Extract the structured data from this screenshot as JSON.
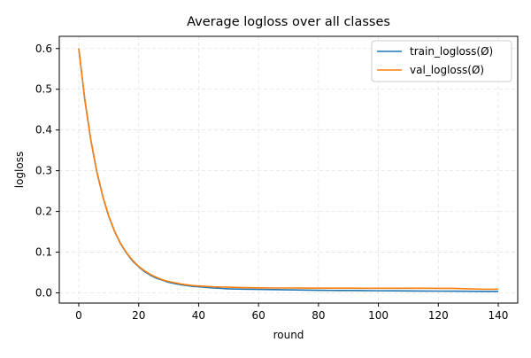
{
  "chart_data": {
    "type": "line",
    "title": "Average logloss over all classes",
    "xlabel": "round",
    "ylabel": "logloss",
    "xlim": [
      -6.5,
      146.5
    ],
    "ylim": [
      -0.025,
      0.63
    ],
    "xticks": [
      0,
      20,
      40,
      60,
      80,
      100,
      120,
      140
    ],
    "yticks": [
      0.0,
      0.1,
      0.2,
      0.3,
      0.4,
      0.5,
      0.6
    ],
    "xtick_labels": [
      "0",
      "20",
      "40",
      "60",
      "80",
      "100",
      "120",
      "140"
    ],
    "ytick_labels": [
      "0.0",
      "0.1",
      "0.2",
      "0.3",
      "0.4",
      "0.5",
      "0.6"
    ],
    "grid": true,
    "legend_position": "top-right",
    "series": [
      {
        "name": "train_logloss(Ø)",
        "color": "#1f77b4",
        "x": [
          0,
          2,
          4,
          6,
          8,
          10,
          12,
          14,
          16,
          18,
          20,
          22,
          24,
          26,
          28,
          30,
          32,
          34,
          36,
          38,
          40,
          45,
          50,
          55,
          60,
          65,
          70,
          75,
          80,
          85,
          90,
          95,
          100,
          105,
          110,
          115,
          120,
          125,
          130,
          135,
          140
        ],
        "y": [
          0.6,
          0.475,
          0.376,
          0.298,
          0.237,
          0.188,
          0.15,
          0.12,
          0.097,
          0.078,
          0.064,
          0.052,
          0.043,
          0.036,
          0.031,
          0.026,
          0.023,
          0.02,
          0.018,
          0.016,
          0.015,
          0.012,
          0.01,
          0.009,
          0.0085,
          0.008,
          0.0075,
          0.007,
          0.0065,
          0.006,
          0.0058,
          0.0055,
          0.0052,
          0.005,
          0.0048,
          0.0046,
          0.0044,
          0.0042,
          0.004,
          0.0038,
          0.0036
        ]
      },
      {
        "name": "val_logloss(Ø)",
        "color": "#ff7f0e",
        "x": [
          0,
          2,
          4,
          6,
          8,
          10,
          12,
          14,
          16,
          18,
          20,
          22,
          24,
          26,
          28,
          30,
          32,
          34,
          36,
          38,
          40,
          45,
          50,
          55,
          60,
          65,
          70,
          75,
          80,
          85,
          90,
          95,
          100,
          105,
          110,
          115,
          120,
          125,
          130,
          135,
          140
        ],
        "y": [
          0.6,
          0.476,
          0.377,
          0.299,
          0.238,
          0.189,
          0.151,
          0.121,
          0.098,
          0.08,
          0.065,
          0.054,
          0.045,
          0.038,
          0.032,
          0.028,
          0.025,
          0.022,
          0.02,
          0.018,
          0.017,
          0.015,
          0.014,
          0.013,
          0.0125,
          0.012,
          0.012,
          0.0118,
          0.0116,
          0.0115,
          0.0115,
          0.0114,
          0.0113,
          0.0113,
          0.0112,
          0.0112,
          0.011,
          0.011,
          0.01,
          0.009,
          0.009
        ]
      }
    ]
  }
}
